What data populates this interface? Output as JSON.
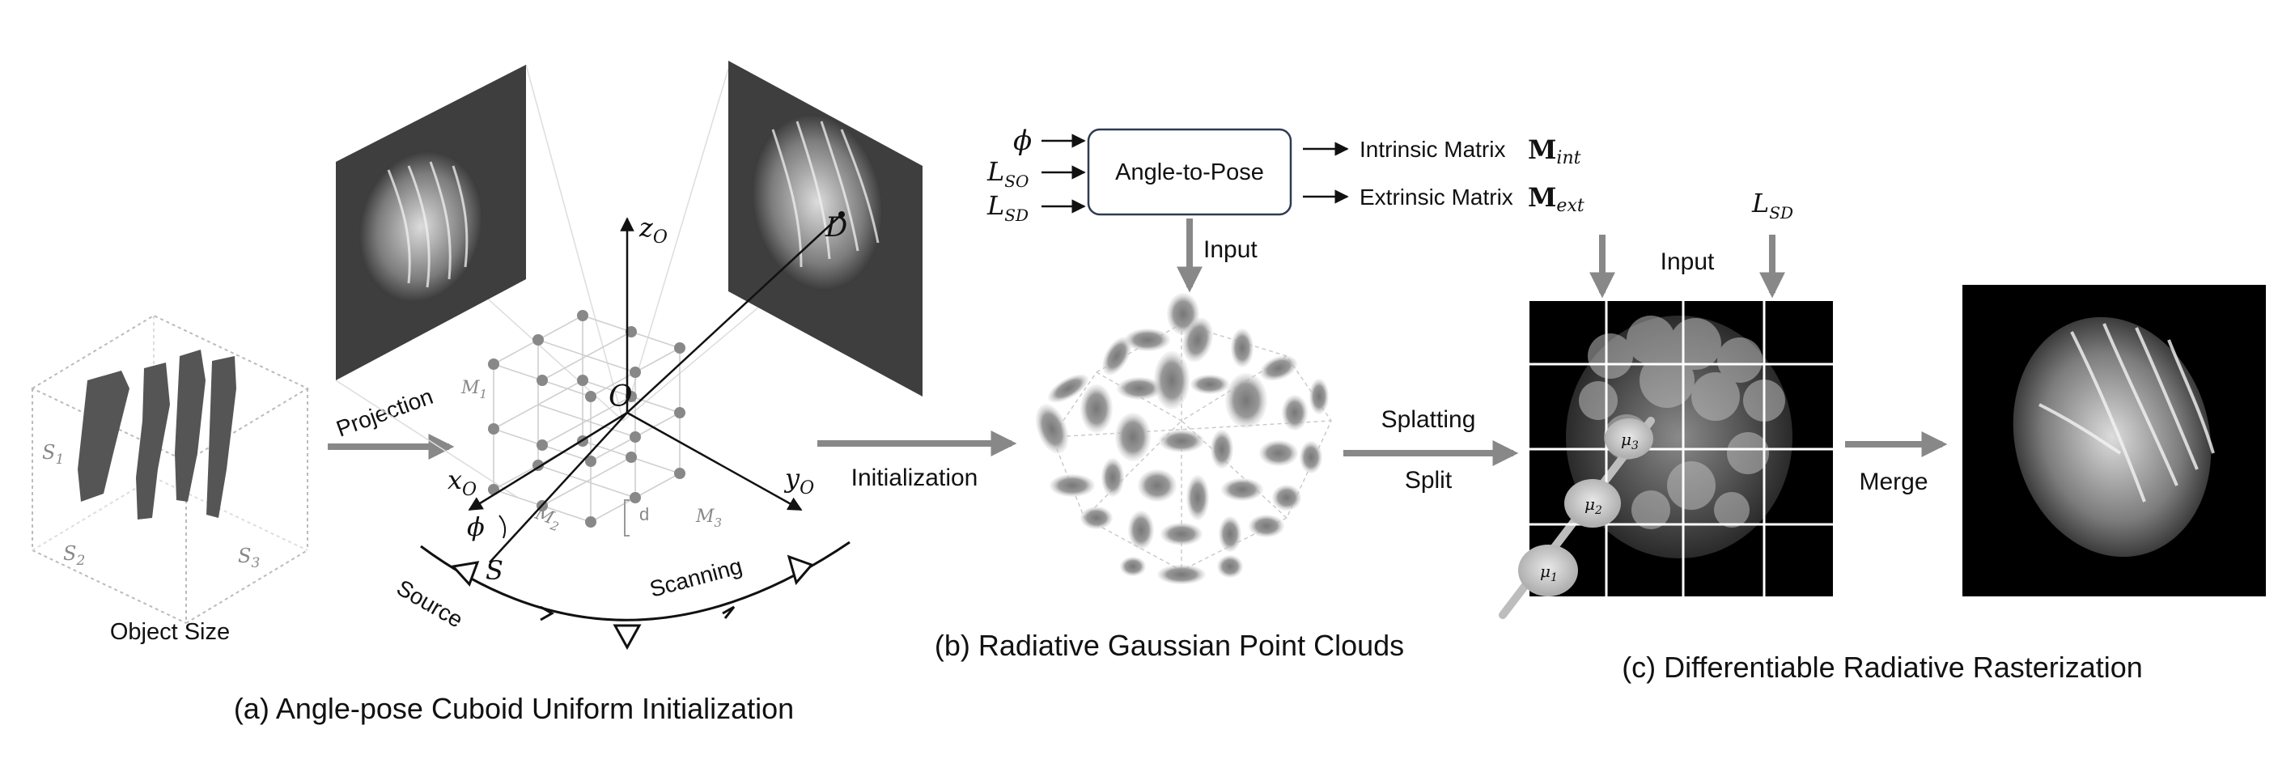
{
  "panel_a": {
    "caption": "(a) Angle-pose Cuboid Uniform Initialization",
    "object_size_label": "Object Size",
    "s1": "S",
    "s1_sub": "1",
    "s2": "S",
    "s2_sub": "2",
    "s3": "S",
    "s3_sub": "3",
    "projection_label": "Projection",
    "m1": "M",
    "m1_sub": "1",
    "m2": "M",
    "m2_sub": "2",
    "m3": "M",
    "m3_sub": "3",
    "d_label": "d",
    "origin": "O",
    "z_axis": "z",
    "z_sub": "O",
    "x_axis": "x",
    "x_sub": "O",
    "y_axis": "y",
    "y_sub": "O",
    "detector": "D",
    "source_point": "S",
    "phi": "ϕ",
    "source_label": "Source",
    "scanning_label": "Scanning"
  },
  "transition_ab": {
    "label": "Initialization"
  },
  "panel_b": {
    "caption": "(b) Radiative Gaussian Point Clouds",
    "input_phi": "ϕ",
    "input_lso": "L",
    "input_lso_sub": "SO",
    "input_lsd": "L",
    "input_lsd_sub": "SD",
    "box_label": "Angle-to-Pose",
    "intrinsic_label": "Intrinsic Matrix",
    "intrinsic_sym": "M",
    "intrinsic_sub": "int",
    "extrinsic_label": "Extrinsic Matrix",
    "extrinsic_sym": "M",
    "extrinsic_sub": "ext",
    "input_label": "Input"
  },
  "transition_bc": {
    "label_top": "Splatting",
    "label_bottom": "Split"
  },
  "panel_c": {
    "caption": "(c) Differentiable Radiative Rasterization",
    "input_label": "Input",
    "lsd": "L",
    "lsd_sub": "SD",
    "mu1": "μ",
    "mu1_sub": "1",
    "mu2": "μ",
    "mu2_sub": "2",
    "mu3": "μ",
    "mu3_sub": "3",
    "merge_label": "Merge"
  },
  "colors": {
    "arrow_grey": "#888888",
    "box_border": "#2f3b52",
    "panel_dark": "#1a1a1a"
  }
}
